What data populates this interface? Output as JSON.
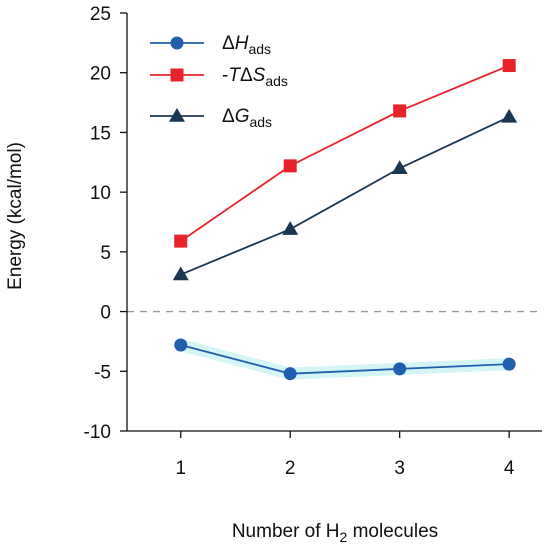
{
  "chart_data": {
    "type": "line",
    "xlabel": "Number of H2 molecules",
    "xlabel_prefix": "Number of H",
    "xlabel_sub": "2",
    "xlabel_suffix": " molecules",
    "ylabel": "Energy (kcal/mol)",
    "x": [
      1,
      2,
      3,
      4
    ],
    "xlim": [
      0.5,
      4.3
    ],
    "ylim": [
      -10,
      25
    ],
    "yticks": [
      -10,
      -5,
      0,
      5,
      10,
      15,
      20,
      25
    ],
    "xticks": [
      1,
      2,
      3,
      4
    ],
    "zero_line": "dashed",
    "legend_position": "top-left",
    "series": [
      {
        "name": "ΔHads",
        "legend_main": "ΔH",
        "legend_sub": "ads",
        "marker": "circle",
        "color": "#1f5fae",
        "values": [
          -2.8,
          -5.2,
          -4.8,
          -4.4
        ]
      },
      {
        "name": "-TΔSads",
        "legend_main": "-TΔS",
        "legend_sub": "ads",
        "marker": "square",
        "color": "#e8222b",
        "values": [
          5.9,
          12.2,
          16.8,
          20.6
        ]
      },
      {
        "name": "ΔGads",
        "legend_main": "ΔG",
        "legend_sub": "ads",
        "marker": "triangle",
        "color": "#1b3650",
        "values": [
          3.1,
          6.9,
          12.0,
          16.3
        ]
      }
    ]
  }
}
